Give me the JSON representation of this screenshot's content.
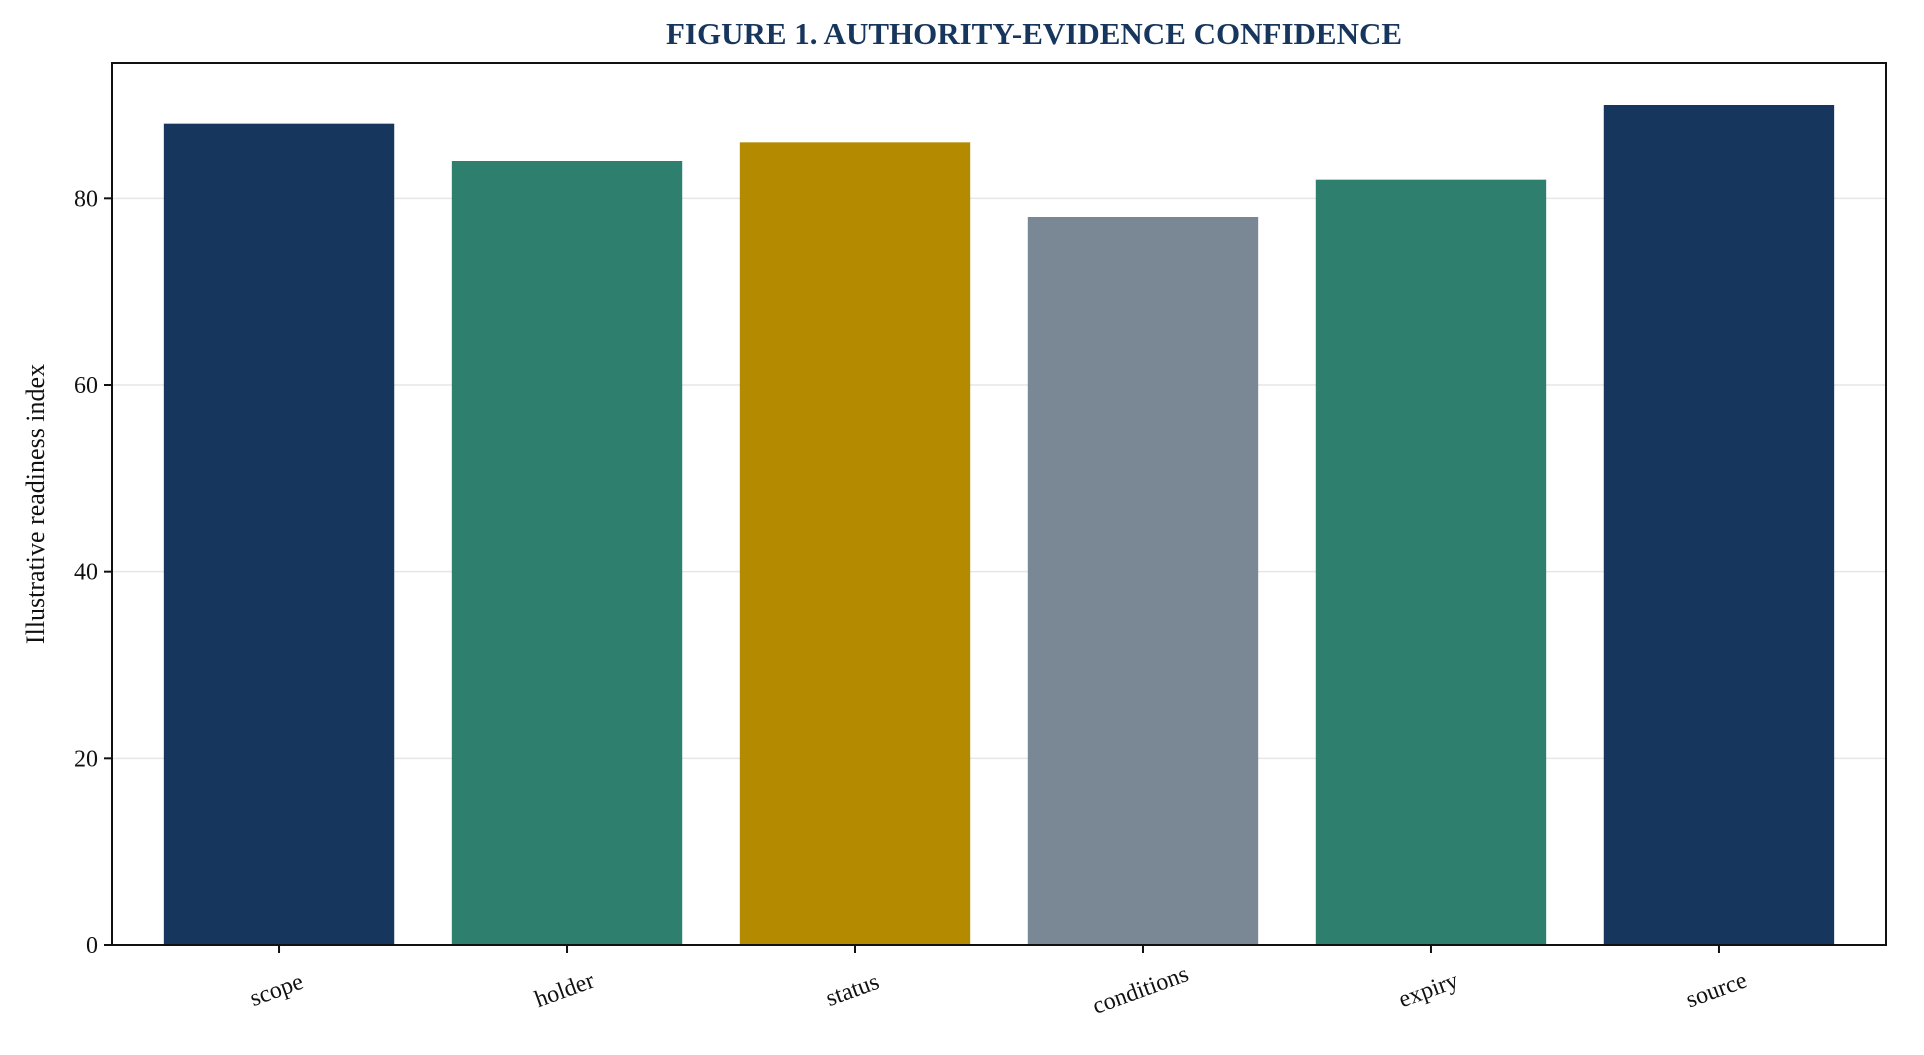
{
  "chart_data": {
    "type": "bar",
    "title": "FIGURE 1. AUTHORITY-EVIDENCE CONFIDENCE",
    "xlabel": "",
    "ylabel": "Illustrative readiness index",
    "categories": [
      "scope",
      "holder",
      "status",
      "conditions",
      "expiry",
      "source"
    ],
    "values": [
      88,
      84,
      86,
      78,
      82,
      90
    ],
    "bar_colors": [
      "#17365d",
      "#2e7f6e",
      "#b38a00",
      "#7a8896",
      "#2e7f6e",
      "#17365d"
    ],
    "ylim": [
      0,
      94.5
    ],
    "yticks": [
      0,
      20,
      40,
      60,
      80
    ],
    "grid": "horizontal",
    "legend": "none"
  },
  "colors": {
    "title": "#17365d",
    "axis": "#111111",
    "grid": "#e6e6e6"
  }
}
